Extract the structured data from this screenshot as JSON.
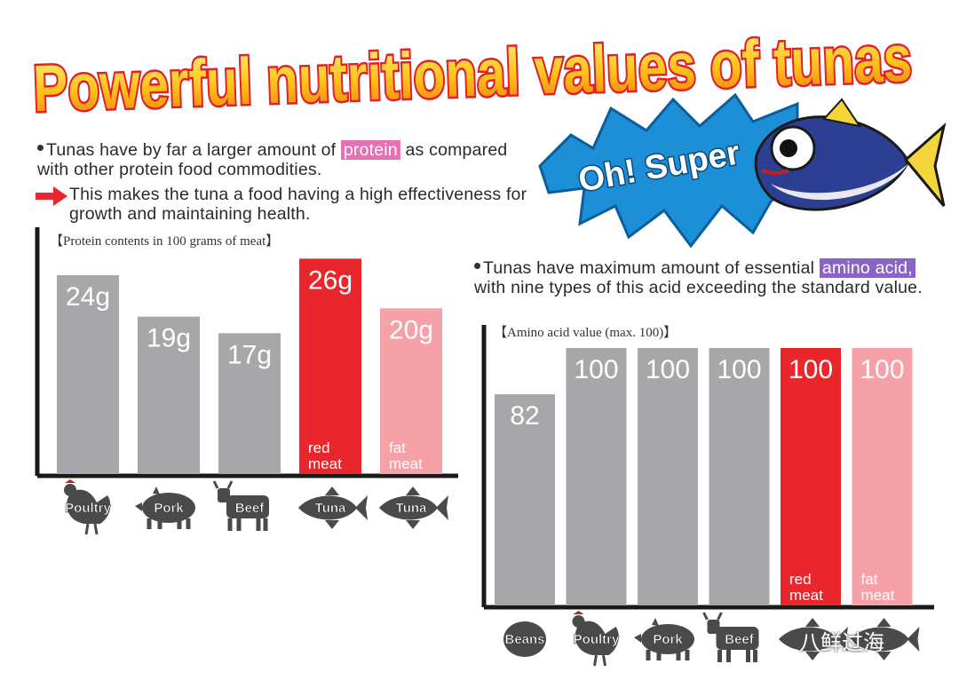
{
  "title": "Powerful nutritional values of tunas",
  "burst_label": "Oh! Super",
  "intro": {
    "line1_pre": "Tunas have by far a larger amount of ",
    "line1_highlight": "protein",
    "line1_post": " as compared with other protein food commodities.",
    "line2": "This makes the tuna a food having a high effectiveness for growth and maintaining health."
  },
  "amino_text": {
    "pre": "Tunas have maximum amount of essential ",
    "highlight": "amino acid,",
    "post": " with nine types of this acid exceeding the standard value."
  },
  "colors": {
    "gray": "#a7a7a9",
    "red": "#e8262b",
    "pink": "#f6a0a8",
    "axis": "#1a1a1a",
    "icon": "#4a4a4a"
  },
  "chart_data": [
    {
      "type": "bar",
      "title": "【Protein contents in 100 grams of meat】",
      "categories": [
        "Poultry",
        "Pork",
        "Beef",
        "Tuna",
        "Tuna"
      ],
      "values": [
        24,
        19,
        17,
        26,
        20
      ],
      "value_labels": [
        "24g",
        "19g",
        "17g",
        "26g",
        "20g"
      ],
      "bar_notes": [
        "",
        "",
        "",
        "red meat",
        "fat meat"
      ],
      "bar_colors": [
        "gray",
        "gray",
        "gray",
        "red",
        "pink"
      ],
      "icons": [
        "chicken-icon",
        "pig-icon",
        "cow-icon",
        "fish-icon",
        "fish-icon"
      ],
      "ylim": [
        0,
        27
      ]
    },
    {
      "type": "bar",
      "title": "【Amino acid value (max. 100)】",
      "categories": [
        "Beans",
        "Poultry",
        "Pork",
        "Beef",
        "",
        ""
      ],
      "values": [
        82,
        100,
        100,
        100,
        100,
        100
      ],
      "value_labels": [
        "82",
        "100",
        "100",
        "100",
        "100",
        "100"
      ],
      "bar_notes": [
        "",
        "",
        "",
        "",
        "red meat",
        "fat meat"
      ],
      "bar_colors": [
        "gray",
        "gray",
        "gray",
        "gray",
        "red",
        "pink"
      ],
      "icons": [
        "bean-icon",
        "chicken-icon",
        "pig-icon",
        "cow-icon",
        "fish-icon",
        "fish-icon"
      ],
      "ylim": [
        0,
        100
      ]
    }
  ],
  "watermark": "八鲜过海"
}
